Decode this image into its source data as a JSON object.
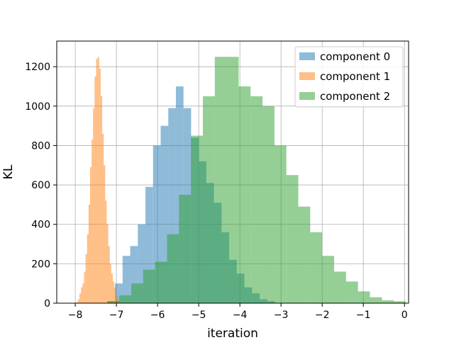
{
  "chart_data": {
    "type": "bar",
    "subtype": "histogram",
    "xlabel": "iteration",
    "ylabel": "KL",
    "xlim": [
      -8.45,
      0.1
    ],
    "ylim": [
      0,
      1330
    ],
    "xticks": [
      -8,
      -7,
      -6,
      -5,
      -4,
      -3,
      -2,
      -1,
      0
    ],
    "xtick_labels": [
      "−8",
      "−7",
      "−6",
      "−5",
      "−4",
      "−3",
      "−2",
      "−1",
      "0"
    ],
    "yticks": [
      0,
      200,
      400,
      600,
      800,
      1000,
      1200
    ],
    "ytick_labels": [
      "0",
      "200",
      "400",
      "600",
      "800",
      "1000",
      "1200"
    ],
    "grid": true,
    "legend_position": "top-right",
    "alpha": 0.5,
    "series": [
      {
        "name": "component 0",
        "color": "#1f77b4",
        "bin_start": -7.22,
        "bin_width": 0.185,
        "counts": [
          10,
          100,
          240,
          290,
          400,
          590,
          800,
          900,
          990,
          1100,
          990,
          840,
          720,
          610,
          510,
          360,
          220,
          150,
          80,
          50,
          20,
          10
        ]
      },
      {
        "name": "component 1",
        "color": "#ff7f0e",
        "bin_start": -7.97,
        "bin_width": 0.0367,
        "counts": [
          5,
          20,
          50,
          80,
          100,
          160,
          250,
          350,
          500,
          690,
          830,
          990,
          1150,
          1240,
          1250,
          1190,
          1050,
          860,
          700,
          520,
          400,
          290,
          200,
          150,
          110,
          80,
          40,
          20,
          10,
          5
        ]
      },
      {
        "name": "component 2",
        "color": "#2ca02c",
        "bin_start": -7.22,
        "bin_width": 0.29,
        "counts": [
          10,
          40,
          100,
          170,
          210,
          350,
          550,
          850,
          1050,
          1250,
          1250,
          1100,
          1050,
          1000,
          800,
          650,
          490,
          360,
          240,
          160,
          110,
          60,
          30,
          15,
          10
        ]
      }
    ]
  }
}
